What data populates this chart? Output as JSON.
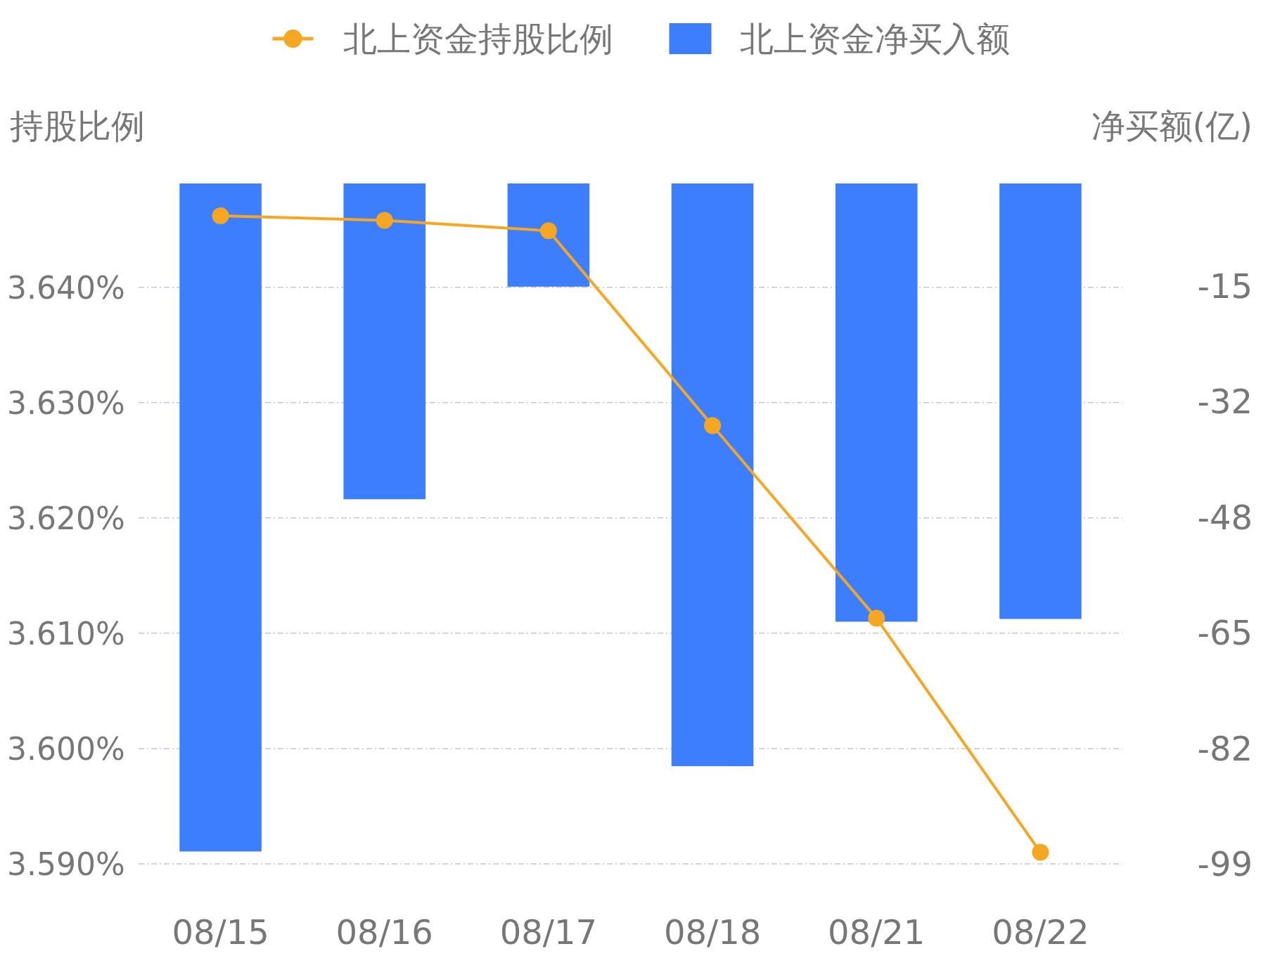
{
  "chart_data": {
    "type": "bar",
    "categories": [
      "08/15",
      "08/16",
      "08/17",
      "08/18",
      "08/21",
      "08/22"
    ],
    "ylabel": "持股比例",
    "y2label": "净买额(亿)",
    "ylim": [
      3.59,
      3.649
    ],
    "yticks": [
      {
        "value": 3.59,
        "label": "3.590%"
      },
      {
        "value": 3.6,
        "label": "3.600%"
      },
      {
        "value": 3.61,
        "label": "3.610%"
      },
      {
        "value": 3.62,
        "label": "3.620%"
      },
      {
        "value": 3.63,
        "label": "3.630%"
      },
      {
        "value": 3.64,
        "label": "3.640%"
      }
    ],
    "y2lim": [
      -98.9,
      0
    ],
    "y2ticks": [
      {
        "value": -98.9,
        "label": "-99"
      },
      {
        "value": -82.1,
        "label": "-82"
      },
      {
        "value": -65.3,
        "label": "-65"
      },
      {
        "value": -48.5,
        "label": "-48"
      },
      {
        "value": -31.7,
        "label": "-32"
      },
      {
        "value": -14.9,
        "label": "-15"
      }
    ],
    "grid": "y",
    "legend": "top",
    "marker": "circle",
    "series": [
      {
        "name": "北上资金持股比例",
        "type": "line",
        "color": "#f5a623",
        "values": [
          3.6462,
          3.6458,
          3.6449,
          3.628,
          3.6113,
          3.591
        ]
      },
      {
        "name": "北上资金净买入额",
        "axis": "y2",
        "color": "#3d7eff",
        "values": [
          -97.1,
          -45.9,
          -15.0,
          -84.7,
          -63.7,
          -63.3
        ]
      }
    ]
  }
}
